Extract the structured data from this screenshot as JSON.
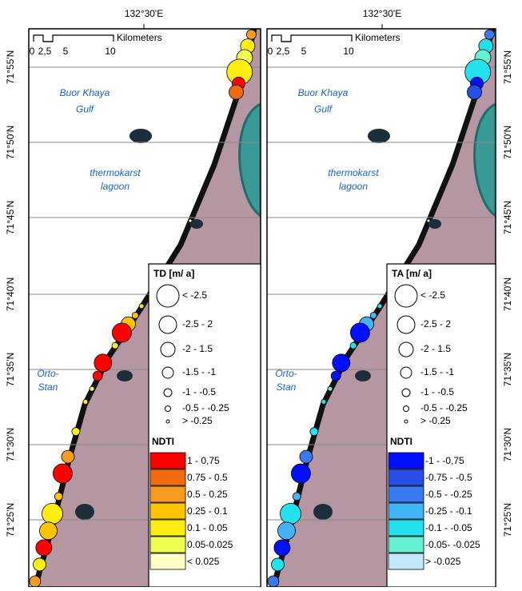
{
  "panels": [
    {
      "top_label": "132°30'E",
      "lat_labels": [
        "71°55'N",
        "71°50'N",
        "71°45'N",
        "71°40'N",
        "71°35'N",
        "71°30'N",
        "71°25'N"
      ],
      "scale_unit": "Kilometers",
      "scale_ticks": [
        "0",
        "2,5",
        "5",
        "10"
      ],
      "gulf": [
        "Buor Khaya",
        "Gulf"
      ],
      "lagoon": [
        "thermokarst",
        "lagoon"
      ],
      "village": [
        "Orto-",
        "Stan"
      ],
      "legend": {
        "title": "TD [m/ a]",
        "sizes": [
          "< -2.5",
          "-2.5 - 2",
          "-2 - 1.5",
          "-1.5 - -1",
          "-1 - -0.5",
          "-0.5 - -0.25",
          "> -0.25"
        ],
        "ndti_title": "NDTI",
        "classes": [
          {
            "label": "1 - 0,75",
            "color": "#ff0000"
          },
          {
            "label": "0.75 - 0.5",
            "color": "#f26a10"
          },
          {
            "label": "0.5 - 0.25",
            "color": "#f89a20"
          },
          {
            "label": "0.25 - 0.1",
            "color": "#ffc400"
          },
          {
            "label": "0.1 - 0.05",
            "color": "#ffee10"
          },
          {
            "label": "0.05-0.025",
            "color": "#eeff50"
          },
          {
            "label": "< 0.025",
            "color": "#ffffc8"
          }
        ]
      }
    },
    {
      "top_label": "132°30'E",
      "lat_labels": [
        "71°55'N",
        "71°50'N",
        "71°45'N",
        "71°40'N",
        "71°35'N",
        "71°30'N",
        "71°25'N"
      ],
      "scale_unit": "Kilometers",
      "scale_ticks": [
        "0",
        "2,5",
        "5",
        "10"
      ],
      "gulf": [
        "Buor Khaya",
        "Gulf"
      ],
      "lagoon": [
        "thermokarst",
        "lagoon"
      ],
      "village": [
        "Orto-",
        "Stan"
      ],
      "legend": {
        "title": "TA [m/ a]",
        "sizes": [
          "< -2.5",
          "-2.5 - 2",
          "-2 - 1.5",
          "-1.5 - -1",
          "-1 - -0.5",
          "-0.5 - -0.25",
          "> -0.25"
        ],
        "ndti_title": "NDTI",
        "classes": [
          {
            "label": "-1 - -0,75",
            "color": "#0010ff"
          },
          {
            "label": "-0.75 - -0.5",
            "color": "#2a4ee8"
          },
          {
            "label": "-0.5 - -0.25",
            "color": "#3a7af0"
          },
          {
            "label": "-0.25 - -0.1",
            "color": "#40b4f4"
          },
          {
            "label": "-0.1 - -0.05",
            "color": "#22e2f0"
          },
          {
            "label": "-0.05- -0.025",
            "color": "#66f2d2"
          },
          {
            "label": "> -0.025",
            "color": "#c4e8ff"
          }
        ]
      }
    }
  ]
}
